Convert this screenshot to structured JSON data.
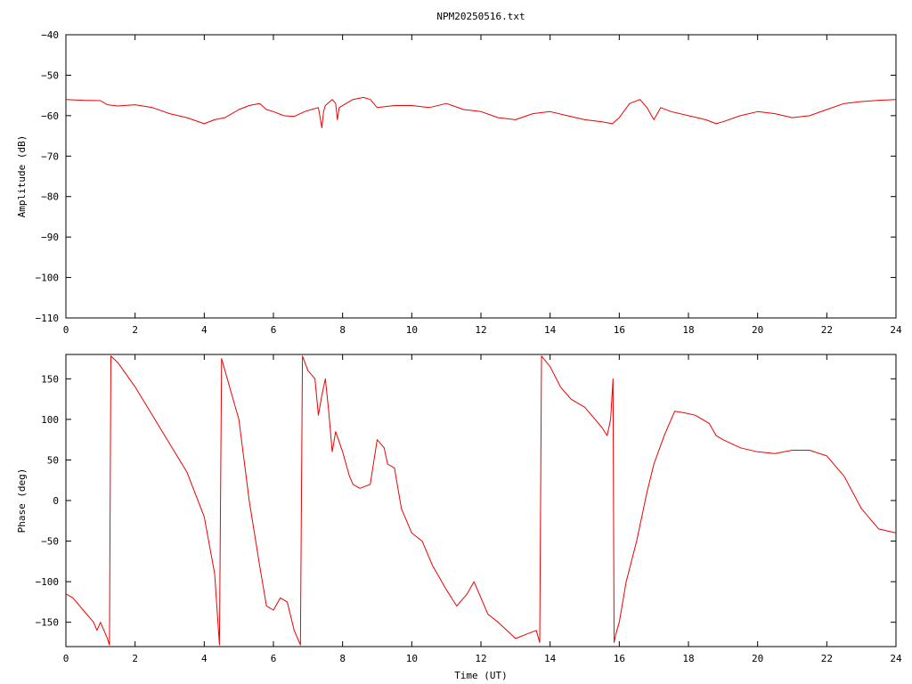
{
  "colors": {
    "trace": "#ee0000",
    "background": "#ffffff",
    "axes": "#000000"
  },
  "chart_data": [
    {
      "type": "line",
      "title": "NPM20250516.txt",
      "xlabel": "",
      "ylabel": "Amplitude (dB)",
      "xlim": [
        0,
        24
      ],
      "ylim": [
        -110,
        -40
      ],
      "xticks": [
        "0",
        "2",
        "4",
        "6",
        "8",
        "10",
        "12",
        "14",
        "16",
        "18",
        "20",
        "22",
        "24"
      ],
      "yticks": [
        "-110",
        "-100",
        "-90",
        "-80",
        "-70",
        "-60",
        "-50",
        "-40"
      ],
      "grid": false,
      "series": [
        {
          "x": [
            0,
            0.5,
            1.0,
            1.2,
            1.5,
            2.0,
            2.5,
            3.0,
            3.5,
            4.0,
            4.3,
            4.6,
            5.0,
            5.3,
            5.6,
            5.8,
            6.0,
            6.3,
            6.6,
            6.9,
            7.1,
            7.3,
            7.4,
            7.45,
            7.5,
            7.7,
            7.8,
            7.85,
            7.9,
            8.1,
            8.3,
            8.6,
            8.8,
            9.0,
            9.5,
            10.0,
            10.5,
            11.0,
            11.5,
            12.0,
            12.5,
            13.0,
            13.5,
            14.0,
            14.5,
            15.0,
            15.5,
            15.8,
            16.0,
            16.3,
            16.6,
            16.8,
            17.0,
            17.2,
            17.5,
            18.0,
            18.5,
            18.8,
            19.0,
            19.5,
            20.0,
            20.5,
            21.0,
            21.5,
            22.0,
            22.5,
            23.0,
            23.5,
            24.0
          ],
          "y": [
            -56,
            -56.2,
            -56.3,
            -57.3,
            -57.6,
            -57.3,
            -58,
            -59.5,
            -60.5,
            -62,
            -61,
            -60.5,
            -58.5,
            -57.5,
            -57,
            -58.5,
            -59,
            -60,
            -60.2,
            -59,
            -58.5,
            -58,
            -63,
            -59,
            -57.5,
            -56,
            -57,
            -61,
            -58,
            -57,
            -56,
            -55.5,
            -56,
            -58,
            -57.5,
            -57.5,
            -58,
            -57,
            -58.5,
            -59,
            -60.5,
            -61,
            -59.5,
            -59,
            -60,
            -61,
            -61.5,
            -62,
            -60.5,
            -57,
            -56,
            -58,
            -61,
            -58,
            -59,
            -60,
            -61,
            -62,
            -61.5,
            -60,
            -59,
            -59.5,
            -60.5,
            -60,
            -58.5,
            -57,
            -56.5,
            -56.2,
            -56
          ]
        }
      ]
    },
    {
      "type": "line",
      "xlabel": "Time (UT)",
      "ylabel": "Phase (deg)",
      "xlim": [
        0,
        24
      ],
      "ylim": [
        -180,
        180
      ],
      "xticks": [
        "0",
        "2",
        "4",
        "6",
        "8",
        "10",
        "12",
        "14",
        "16",
        "18",
        "20",
        "22",
        "24"
      ],
      "yticks": [
        "-150",
        "-100",
        "-50",
        "0",
        "50",
        "100",
        "150"
      ],
      "grid": false,
      "series": [
        {
          "x": [
            0,
            0.2,
            0.5,
            0.8,
            0.9,
            1.0,
            1.1,
            1.2,
            1.26,
            1.3,
            1.5,
            2.0,
            2.5,
            3.0,
            3.5,
            4.0,
            4.3,
            4.44,
            4.5,
            4.8,
            5.0,
            5.3,
            5.6,
            5.8,
            6.0,
            6.2,
            6.4,
            6.6,
            6.78,
            6.84,
            7.0,
            7.2,
            7.3,
            7.4,
            7.5,
            7.6,
            7.7,
            7.8,
            8.0,
            8.2,
            8.3,
            8.5,
            8.8,
            9.0,
            9.2,
            9.3,
            9.5,
            9.7,
            10.0,
            10.3,
            10.6,
            11.0,
            11.3,
            11.6,
            11.8,
            12.0,
            12.2,
            12.5,
            13.0,
            13.3,
            13.6,
            13.7,
            13.75,
            14.0,
            14.3,
            14.6,
            14.8,
            15.0,
            15.3,
            15.5,
            15.65,
            15.75,
            15.82,
            15.85,
            15.9,
            16.0,
            16.2,
            16.5,
            16.8,
            17.0,
            17.3,
            17.6,
            17.9,
            18.2,
            18.6,
            18.8,
            19.0,
            19.5,
            20.0,
            20.5,
            21.0,
            21.5,
            22.0,
            22.5,
            23.0,
            23.5,
            24.0
          ],
          "y": [
            -115,
            -120,
            -135,
            -150,
            -160,
            -150,
            -160,
            -170,
            -178,
            178,
            170,
            140,
            105,
            70,
            35,
            -20,
            -90,
            -178,
            175,
            130,
            100,
            0,
            -80,
            -130,
            -135,
            -120,
            -125,
            -160,
            -178,
            178,
            160,
            150,
            105,
            130,
            150,
            110,
            60,
            85,
            60,
            30,
            20,
            15,
            20,
            75,
            65,
            45,
            40,
            -10,
            -40,
            -50,
            -80,
            -110,
            -130,
            -115,
            -100,
            -120,
            -140,
            -150,
            -170,
            -165,
            -160,
            -175,
            178,
            165,
            140,
            125,
            120,
            115,
            100,
            90,
            80,
            100,
            150,
            -175,
            -165,
            -150,
            -100,
            -50,
            10,
            45,
            80,
            110,
            108,
            105,
            95,
            80,
            75,
            65,
            60,
            58,
            62,
            62,
            55,
            30,
            -10,
            -35,
            -40
          ]
        }
      ]
    }
  ]
}
